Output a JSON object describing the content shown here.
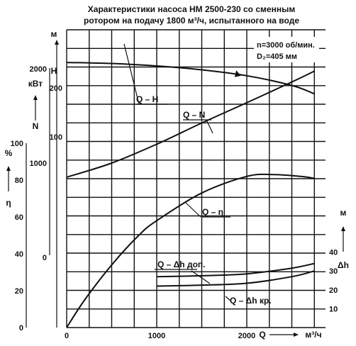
{
  "chart_data": {
    "type": "line",
    "title": "Характеристики насоса НМ 2500-230 со сменным",
    "subtitle": "ротором на подачу 1800 м³/ч, испытанного на воде",
    "params": [
      "n=3000 об/мин.",
      "D₂=405 мм"
    ],
    "x_axis": {
      "label_letter": "Q",
      "unit": "м³/ч",
      "range": [
        0,
        2900
      ],
      "ticks": [
        0,
        1000,
        2000
      ]
    },
    "y_axes": {
      "H": {
        "letter": "H",
        "unit": "м",
        "ticks": [
          100,
          200
        ],
        "range": [
          25,
          300
        ]
      },
      "N": {
        "letter": "N",
        "unit": "кВт",
        "ticks": [
          0,
          1000,
          2000
        ],
        "range": [
          -500,
          2400
        ]
      },
      "eta": {
        "letter": "η",
        "unit": "%",
        "ticks": [
          0,
          20,
          40,
          60,
          80,
          100
        ],
        "range": [
          0,
          100
        ]
      },
      "dh": {
        "letter": "Δh",
        "unit": "м",
        "ticks": [
          10,
          20,
          30,
          40
        ],
        "range": [
          0,
          50
        ]
      }
    },
    "series": [
      {
        "name": "Q – H",
        "axis": "H",
        "x": [
          0,
          500,
          1000,
          1500,
          2000,
          2500,
          2750
        ],
        "y": [
          252,
          250,
          245,
          237,
          225,
          205,
          188
        ]
      },
      {
        "name": "Q – N",
        "axis": "N",
        "x": [
          0,
          500,
          1000,
          1500,
          2000,
          2500,
          2750
        ],
        "y": [
          850,
          1000,
          1200,
          1425,
          1640,
          1860,
          1975
        ]
      },
      {
        "name": "Q – η",
        "axis": "eta",
        "x": [
          0,
          200,
          500,
          800,
          1000,
          1500,
          2000,
          2300,
          2600,
          2750
        ],
        "y": [
          0,
          15,
          34,
          50,
          58,
          73,
          82,
          83,
          82,
          81
        ]
      },
      {
        "name": "Q – Δh доп.",
        "axis": "dh",
        "x": [
          1000,
          1500,
          2000,
          2500,
          2750
        ],
        "y": [
          27,
          27.5,
          28.5,
          31.5,
          34
        ]
      },
      {
        "name": "Q – Δh кр.",
        "axis": "dh",
        "x": [
          1000,
          1500,
          2000,
          2500,
          2750
        ],
        "y": [
          22,
          22.5,
          23.5,
          27,
          30
        ]
      }
    ]
  }
}
